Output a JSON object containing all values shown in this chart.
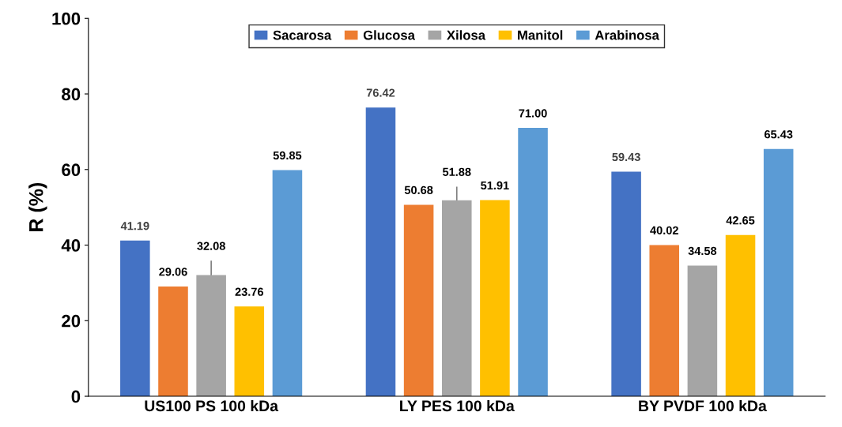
{
  "chart_data": {
    "type": "bar",
    "ylabel": "R (%)",
    "categories": [
      "US100 PS 100 kDa",
      "LY PES 100 kDa",
      "BY PVDF 100 kDa"
    ],
    "series": [
      {
        "name": "Sacarosa",
        "color": "#4472c4",
        "values": [
          41.19,
          76.42,
          59.43
        ]
      },
      {
        "name": "Glucosa",
        "color": "#ed7d31",
        "values": [
          29.06,
          50.68,
          40.02
        ]
      },
      {
        "name": "Xilosa",
        "color": "#a5a5a5",
        "values": [
          32.08,
          51.88,
          34.58
        ],
        "errors": [
          3.8,
          3.6,
          null
        ]
      },
      {
        "name": "Manitol",
        "color": "#ffc000",
        "values": [
          23.76,
          51.91,
          42.65
        ]
      },
      {
        "name": "Arabinosa",
        "color": "#5b9bd5",
        "values": [
          59.85,
          71.0,
          65.43
        ],
        "value_labels": [
          "59.85",
          "71.00",
          "65.43"
        ]
      }
    ],
    "data_labels": true,
    "ylim": [
      0,
      100
    ],
    "yticks": [
      0,
      20,
      40,
      60,
      80,
      100
    ],
    "grid": false,
    "legend": "top"
  }
}
